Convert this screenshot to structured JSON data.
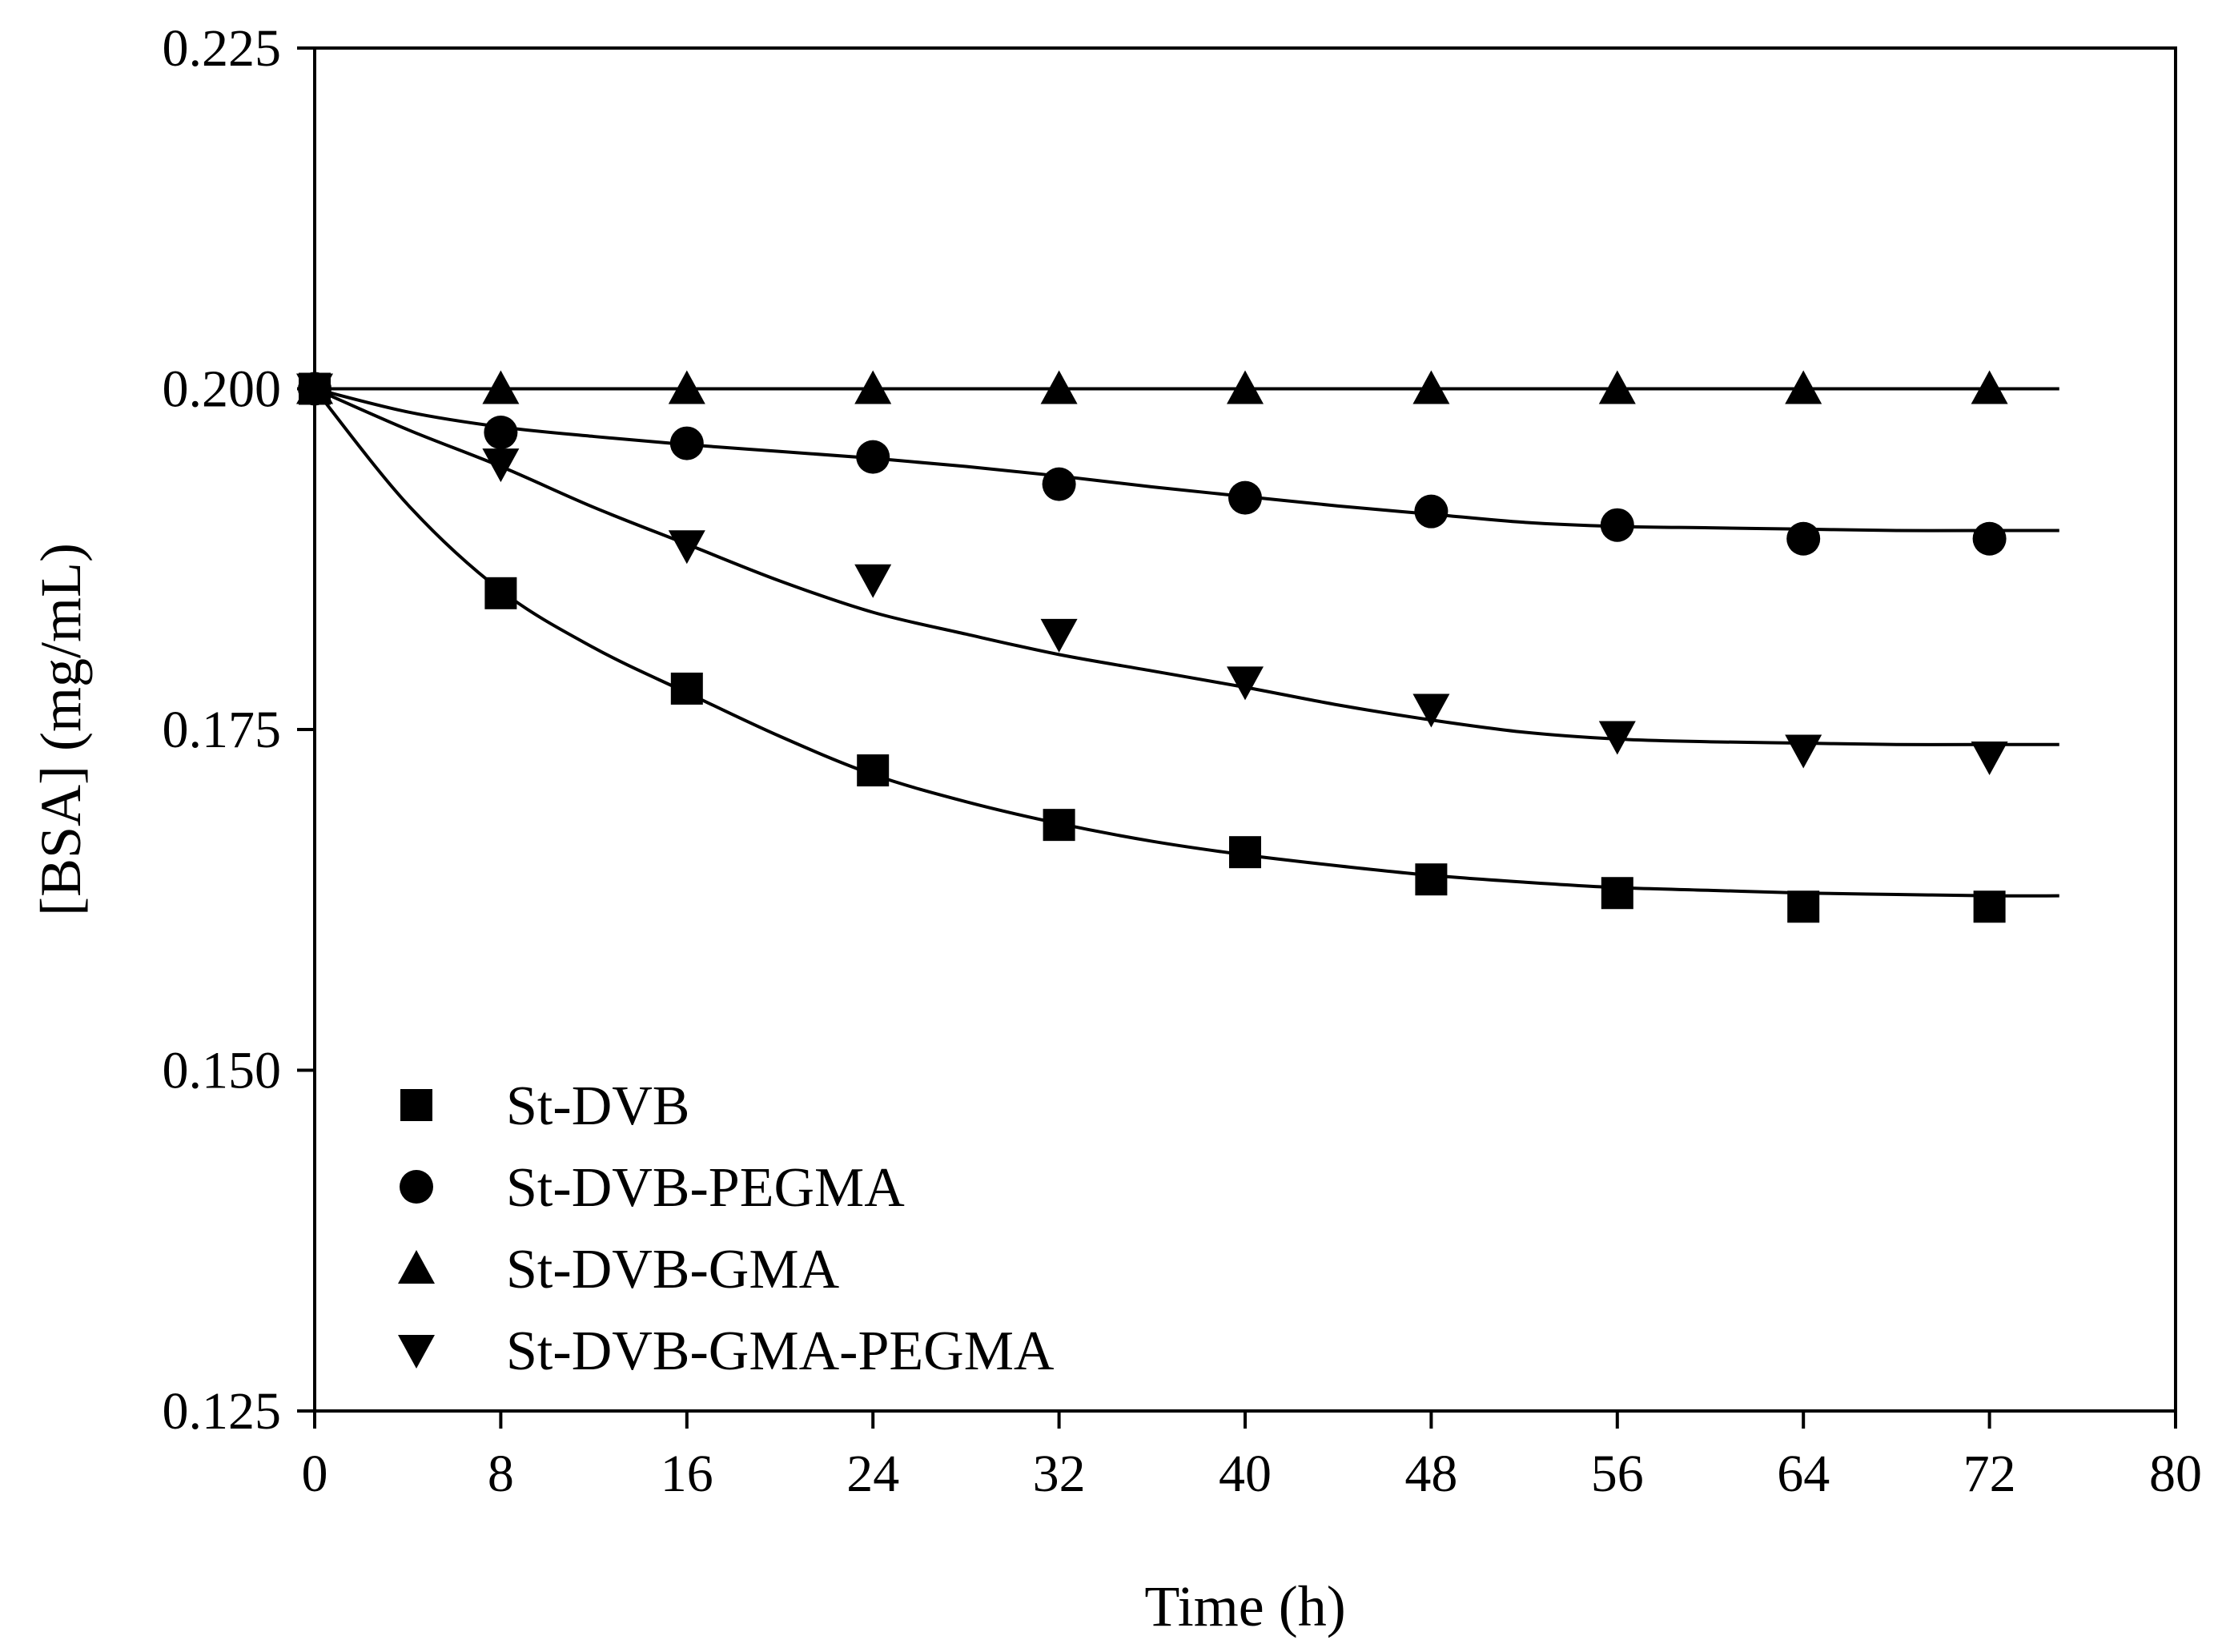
{
  "chart_data": {
    "type": "scatter",
    "title": "",
    "xlabel": "Time (h)",
    "ylabel": "[BSA] (mg/mL)",
    "xlim": [
      0,
      80
    ],
    "ylim": [
      0.125,
      0.225
    ],
    "xticks": [
      0,
      8,
      16,
      24,
      32,
      40,
      48,
      56,
      64,
      72,
      80
    ],
    "yticks": [
      0.125,
      0.15,
      0.175,
      0.2,
      0.225
    ],
    "xtick_labels": [
      "0",
      "8",
      "16",
      "24",
      "32",
      "40",
      "48",
      "56",
      "64",
      "72",
      "80"
    ],
    "ytick_labels": [
      "0.125",
      "0.150",
      "0.175",
      "0.200",
      "0.225"
    ],
    "grid": false,
    "legend_position": "bottom-left",
    "series": [
      {
        "name": "St-DVB",
        "marker": "square",
        "x": [
          0,
          8,
          16,
          24,
          32,
          40,
          48,
          56,
          64,
          72
        ],
        "y": [
          0.2,
          0.185,
          0.178,
          0.172,
          0.168,
          0.166,
          0.164,
          0.163,
          0.162,
          0.162
        ],
        "fit": {
          "x": [
            0,
            4,
            8,
            12,
            16,
            20,
            24,
            28,
            32,
            36,
            40,
            44,
            48,
            52,
            56,
            60,
            64,
            68,
            72,
            75
          ],
          "y": [
            0.2,
            0.1915,
            0.1852,
            0.181,
            0.1777,
            0.1745,
            0.1717,
            0.1697,
            0.1681,
            0.1668,
            0.1658,
            0.165,
            0.1643,
            0.1638,
            0.1634,
            0.1632,
            0.163,
            0.1629,
            0.1628,
            0.1628
          ]
        }
      },
      {
        "name": "St-DVB-PEGMA",
        "marker": "circle",
        "x": [
          0,
          8,
          16,
          24,
          32,
          40,
          48,
          56,
          64,
          72
        ],
        "y": [
          0.2,
          0.1968,
          0.196,
          0.195,
          0.193,
          0.192,
          0.191,
          0.19,
          0.189,
          0.189
        ],
        "fit": {
          "x": [
            0,
            4,
            8,
            12,
            16,
            20,
            24,
            28,
            32,
            36,
            40,
            44,
            48,
            52,
            56,
            60,
            64,
            68,
            72,
            75
          ],
          "y": [
            0.2,
            0.1983,
            0.1972,
            0.1965,
            0.1959,
            0.1954,
            0.1949,
            0.1943,
            0.1936,
            0.1928,
            0.1921,
            0.1914,
            0.1908,
            0.1902,
            0.1899,
            0.1898,
            0.1897,
            0.1896,
            0.1896,
            0.1896
          ]
        }
      },
      {
        "name": "St-DVB-GMA",
        "marker": "triangle-up",
        "x": [
          0,
          8,
          16,
          24,
          32,
          40,
          48,
          56,
          64,
          72
        ],
        "y": [
          0.2,
          0.2,
          0.2,
          0.2,
          0.2,
          0.2,
          0.2,
          0.2,
          0.2,
          0.2
        ],
        "fit": {
          "x": [
            0,
            75
          ],
          "y": [
            0.2,
            0.2
          ]
        }
      },
      {
        "name": "St-DVB-GMA-PEGMA",
        "marker": "triangle-down",
        "x": [
          0,
          8,
          16,
          24,
          32,
          40,
          48,
          56,
          64,
          72
        ],
        "y": [
          0.2,
          0.1945,
          0.1885,
          0.186,
          0.182,
          0.1785,
          0.1765,
          0.1745,
          0.1735,
          0.173
        ],
        "fit": {
          "x": [
            0,
            4,
            8,
            12,
            16,
            20,
            24,
            28,
            32,
            36,
            40,
            44,
            48,
            52,
            56,
            60,
            64,
            68,
            72,
            75
          ],
          "y": [
            0.2,
            0.197,
            0.1943,
            0.1913,
            0.1886,
            0.1859,
            0.1836,
            0.182,
            0.1805,
            0.1793,
            0.1781,
            0.1768,
            0.1757,
            0.1748,
            0.1743,
            0.1741,
            0.174,
            0.1739,
            0.1739,
            0.1739
          ]
        }
      }
    ]
  }
}
